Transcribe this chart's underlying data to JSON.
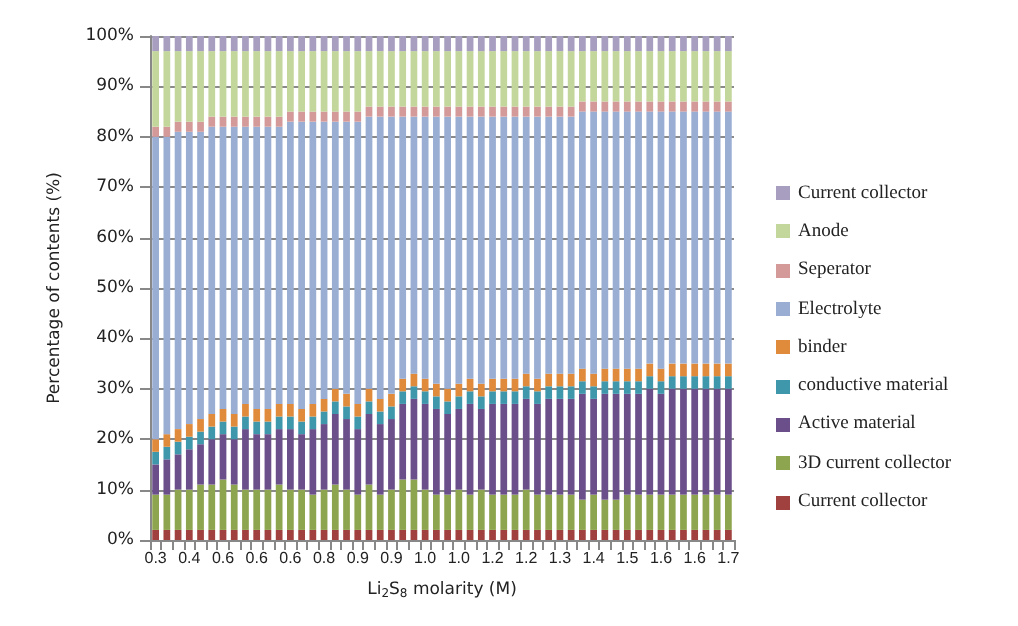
{
  "chart_data": {
    "type": "bar",
    "stacked": true,
    "xlabel": "Li$_{2}$S$_{8}$ molarity (M)",
    "ylabel": "Percentage of contents (%)",
    "categories": [
      "0.3",
      null,
      null,
      "0.4",
      null,
      null,
      "0.6",
      null,
      null,
      "0.6",
      null,
      null,
      "0.6",
      null,
      null,
      "0.8",
      null,
      null,
      "0.9",
      null,
      null,
      "0.9",
      null,
      null,
      "1.0",
      null,
      null,
      "1.0",
      null,
      null,
      "1.2",
      null,
      null,
      "1.2",
      null,
      null,
      "1.3",
      null,
      null,
      "1.4",
      null,
      null,
      "1.5",
      null,
      null,
      "1.6",
      null,
      null,
      "1.6",
      null,
      null,
      "1.7"
    ],
    "series": [
      {
        "name": "Current collector",
        "color": "#a0413f",
        "values": [
          2,
          2,
          2,
          2,
          2,
          2,
          2,
          2,
          2,
          2,
          2,
          2,
          2,
          2,
          2,
          2,
          2,
          2,
          2,
          2,
          2,
          2,
          2,
          2,
          2,
          2,
          2,
          2,
          2,
          2,
          2,
          2,
          2,
          2,
          2,
          2,
          2,
          2,
          2,
          2,
          2,
          2,
          2,
          2,
          2,
          2,
          2,
          2,
          2,
          2,
          2,
          2
        ]
      },
      {
        "name": "3D current collector",
        "color": "#8ea54f",
        "values": [
          7,
          7,
          8,
          8,
          9,
          9,
          10,
          9,
          8,
          8,
          8,
          9,
          8,
          8,
          7,
          8,
          9,
          8,
          7,
          9,
          7,
          8,
          10,
          10,
          8,
          7,
          7,
          8,
          7,
          8,
          7,
          7,
          7,
          8,
          7,
          7,
          7,
          7,
          6,
          7,
          6,
          6,
          7,
          7,
          7,
          7,
          7,
          7,
          7,
          7,
          7,
          7
        ]
      },
      {
        "name": "Active material",
        "color": "#6a4f8a",
        "values": [
          6,
          7,
          7,
          8,
          8,
          9,
          9,
          9,
          12,
          11,
          11,
          11,
          12,
          11,
          13,
          13,
          14,
          14,
          13,
          14,
          14,
          14,
          15,
          16,
          17,
          17,
          16,
          16,
          18,
          16,
          18,
          18,
          18,
          18,
          18,
          19,
          19,
          19,
          21,
          19,
          21,
          21,
          20,
          20,
          21,
          20,
          21,
          21,
          21,
          21,
          21,
          21
        ]
      },
      {
        "name": "conductive material",
        "color": "#3f97ac",
        "values": [
          2.5,
          2.5,
          2.5,
          2.5,
          2.5,
          2.5,
          2.5,
          2.5,
          2.5,
          2.5,
          2.5,
          2.5,
          2.5,
          2.5,
          2.5,
          2.5,
          2.5,
          2.5,
          2.5,
          2.5,
          2.5,
          2.5,
          2.5,
          2.5,
          2.5,
          2.5,
          2.5,
          2.5,
          2.5,
          2.5,
          2.5,
          2.5,
          2.5,
          2.5,
          2.5,
          2.5,
          2.5,
          2.5,
          2.5,
          2.5,
          2.5,
          2.5,
          2.5,
          2.5,
          2.5,
          2.5,
          2.5,
          2.5,
          2.5,
          2.5,
          2.5,
          2.5
        ]
      },
      {
        "name": "binder",
        "color": "#e08a3c",
        "values": [
          2.5,
          2.5,
          2.5,
          2.5,
          2.5,
          2.5,
          2.5,
          2.5,
          2.5,
          2.5,
          2.5,
          2.5,
          2.5,
          2.5,
          2.5,
          2.5,
          2.5,
          2.5,
          2.5,
          2.5,
          2.5,
          2.5,
          2.5,
          2.5,
          2.5,
          2.5,
          2.5,
          2.5,
          2.5,
          2.5,
          2.5,
          2.5,
          2.5,
          2.5,
          2.5,
          2.5,
          2.5,
          2.5,
          2.5,
          2.5,
          2.5,
          2.5,
          2.5,
          2.5,
          2.5,
          2.5,
          2.5,
          2.5,
          2.5,
          2.5,
          2.5,
          2.5
        ]
      },
      {
        "name": "Electrolyte",
        "color": "#9aaed3",
        "values": [
          60,
          59,
          59,
          58,
          57,
          57,
          56,
          57,
          55,
          56,
          56,
          55,
          56,
          57,
          56,
          55,
          53,
          54,
          56,
          54,
          56,
          55,
          52,
          51,
          52,
          53,
          54,
          53,
          52,
          53,
          52,
          52,
          52,
          51,
          52,
          51,
          51,
          51,
          51,
          52,
          51,
          51,
          51,
          51,
          50,
          51,
          50,
          50,
          50,
          50,
          50,
          50
        ]
      },
      {
        "name": "Seperator",
        "color": "#d49a9a",
        "values": [
          2,
          2,
          2,
          2,
          2,
          2,
          2,
          2,
          2,
          2,
          2,
          2,
          2,
          2,
          2,
          2,
          2,
          2,
          2,
          2,
          2,
          2,
          2,
          2,
          2,
          2,
          2,
          2,
          2,
          2,
          2,
          2,
          2,
          2,
          2,
          2,
          2,
          2,
          2,
          2,
          2,
          2,
          2,
          2,
          2,
          2,
          2,
          2,
          2,
          2,
          2,
          2
        ]
      },
      {
        "name": "Anode",
        "color": "#c3d69b",
        "values": [
          15,
          15,
          14,
          14,
          14,
          13,
          13,
          13,
          13,
          13,
          13,
          13,
          12,
          12,
          12,
          12,
          12,
          12,
          12,
          11,
          11,
          11,
          11,
          11,
          11,
          11,
          11,
          11,
          11,
          11,
          11,
          11,
          11,
          11,
          11,
          11,
          11,
          11,
          10,
          10,
          10,
          10,
          10,
          10,
          10,
          10,
          10,
          10,
          10,
          10,
          10,
          10
        ]
      },
      {
        "name": "Current collector",
        "color": "#a89fc0",
        "values": [
          3,
          3,
          3,
          3,
          3,
          3,
          3,
          3,
          3,
          3,
          3,
          3,
          3,
          3,
          3,
          3,
          3,
          3,
          3,
          3,
          3,
          3,
          3,
          3,
          3,
          3,
          3,
          3,
          3,
          3,
          3,
          3,
          3,
          3,
          3,
          3,
          3,
          3,
          3,
          3,
          3,
          3,
          3,
          3,
          3,
          3,
          3,
          3,
          3,
          3,
          3,
          3
        ]
      }
    ],
    "ylim": [
      0,
      100
    ],
    "yticks": [
      {
        "value": 0,
        "label": "0%"
      },
      {
        "value": 10,
        "label": "10%"
      },
      {
        "value": 20,
        "label": "20%"
      },
      {
        "value": 30,
        "label": "30%"
      },
      {
        "value": 40,
        "label": "40%"
      },
      {
        "value": 50,
        "label": "50%"
      },
      {
        "value": 60,
        "label": "60%"
      },
      {
        "value": 70,
        "label": "70%"
      },
      {
        "value": 80,
        "label": "80%"
      },
      {
        "value": 90,
        "label": "90%"
      },
      {
        "value": 100,
        "label": "100%"
      }
    ],
    "grid": "y",
    "legend": "right"
  }
}
